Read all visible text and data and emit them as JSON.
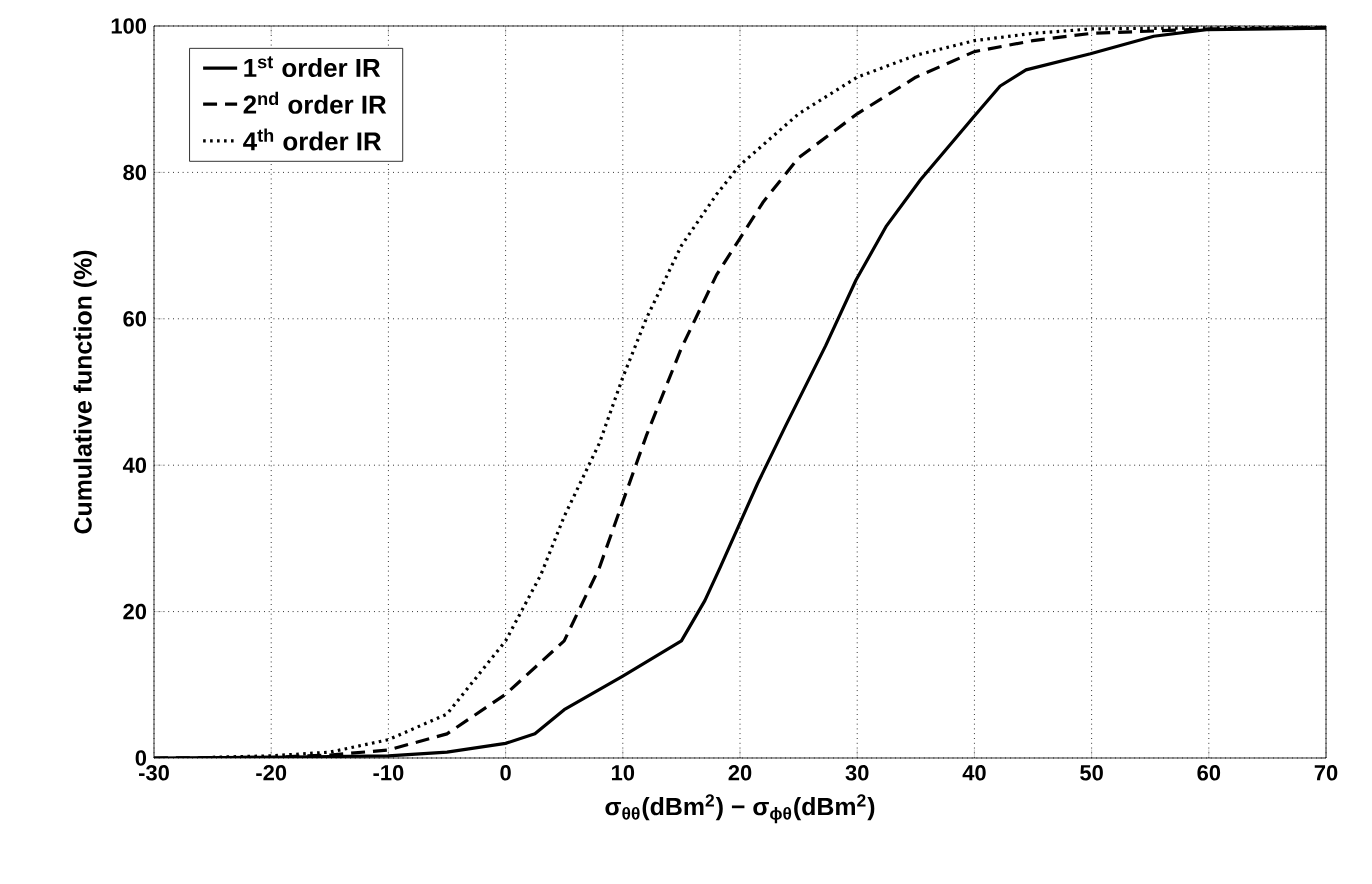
{
  "chart_data": {
    "type": "line",
    "xlabel": "σ$_{θθ}$(dBm$^{2}$) −  σ$_{ϕθ}$(dBm$^{2}$)",
    "ylabel": "Cumulative function (%)",
    "xlim": [
      -30,
      70
    ],
    "ylim": [
      0,
      100
    ],
    "xticks": [
      -30,
      -20,
      -10,
      0,
      10,
      20,
      30,
      40,
      50,
      60,
      70
    ],
    "yticks": [
      0,
      20,
      40,
      60,
      80,
      100
    ],
    "grid": true,
    "legend": "top left",
    "series": [
      {
        "name": "1$^{st}$ order IR",
        "color": "#000000",
        "line_style": "solid",
        "x": [
          -30,
          -20,
          -10,
          -5,
          0,
          2.5,
          5,
          10,
          15,
          17,
          18.3,
          21.5,
          23.9,
          27.3,
          29.9,
          32.5,
          35.4,
          40,
          42.2,
          44.4,
          49.9,
          55.3,
          59.8,
          70
        ],
        "values": [
          0,
          0.1,
          0.3,
          0.8,
          2,
          3.3,
          6.6,
          11.2,
          16,
          21.5,
          26,
          37.5,
          45.4,
          56.3,
          65.3,
          72.7,
          79,
          87.7,
          91.8,
          94,
          96.2,
          98.6,
          99.5,
          99.7
        ]
      },
      {
        "name": "2$^{nd}$ order IR",
        "color": "#000000",
        "line_style": "dashed",
        "x": [
          -30,
          -20,
          -15,
          -10,
          -5,
          0,
          5,
          8,
          10,
          12,
          15,
          18,
          20,
          22,
          25,
          30,
          35,
          40,
          45,
          50,
          60,
          70
        ],
        "values": [
          0,
          0.1,
          0.4,
          1.1,
          3.3,
          8.7,
          16,
          26,
          35,
          44,
          56,
          66,
          71,
          76,
          82,
          88,
          93,
          96.5,
          98,
          99,
          99.6,
          99.8
        ]
      },
      {
        "name": "4$^{th}$ order IR",
        "color": "#000000",
        "line_style": "dotted",
        "x": [
          -25,
          -20,
          -15,
          -10,
          -5,
          0,
          3,
          5,
          8,
          10,
          12,
          15,
          18,
          20,
          25,
          30,
          35,
          40,
          45,
          50,
          70
        ],
        "values": [
          0.1,
          0.3,
          0.8,
          2.5,
          6,
          16,
          25,
          33,
          43,
          52,
          60,
          70,
          77,
          81,
          88,
          93,
          96,
          98,
          99,
          99.6,
          99.9
        ]
      }
    ]
  }
}
